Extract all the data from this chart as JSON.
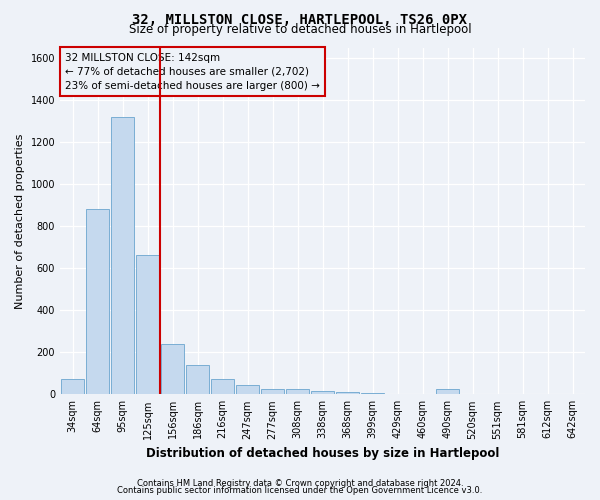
{
  "title": "32, MILLSTON CLOSE, HARTLEPOOL, TS26 0PX",
  "subtitle": "Size of property relative to detached houses in Hartlepool",
  "xlabel": "Distribution of detached houses by size in Hartlepool",
  "ylabel": "Number of detached properties",
  "footer1": "Contains HM Land Registry data © Crown copyright and database right 2024.",
  "footer2": "Contains public sector information licensed under the Open Government Licence v3.0.",
  "annotation_line1": "32 MILLSTON CLOSE: 142sqm",
  "annotation_line2": "← 77% of detached houses are smaller (2,702)",
  "annotation_line3": "23% of semi-detached houses are larger (800) →",
  "bar_color": "#c5d9ee",
  "bar_edge_color": "#7aaed4",
  "vline_color": "#cc0000",
  "categories": [
    "34sqm",
    "64sqm",
    "95sqm",
    "125sqm",
    "156sqm",
    "186sqm",
    "216sqm",
    "247sqm",
    "277sqm",
    "308sqm",
    "338sqm",
    "368sqm",
    "399sqm",
    "429sqm",
    "460sqm",
    "490sqm",
    "520sqm",
    "551sqm",
    "581sqm",
    "612sqm",
    "642sqm"
  ],
  "values": [
    75,
    880,
    1320,
    665,
    240,
    140,
    75,
    45,
    25,
    25,
    15,
    10,
    5,
    0,
    0,
    25,
    0,
    0,
    0,
    0,
    0
  ],
  "ylim": [
    0,
    1650
  ],
  "yticks": [
    0,
    200,
    400,
    600,
    800,
    1000,
    1200,
    1400,
    1600
  ],
  "vline_x": 3.5,
  "bg_color": "#eef2f8",
  "grid_color": "#ffffff",
  "title_fontsize": 10,
  "subtitle_fontsize": 8.5,
  "ylabel_fontsize": 8,
  "xlabel_fontsize": 8.5,
  "tick_fontsize": 7,
  "ann_fontsize": 7.5,
  "footer_fontsize": 6
}
